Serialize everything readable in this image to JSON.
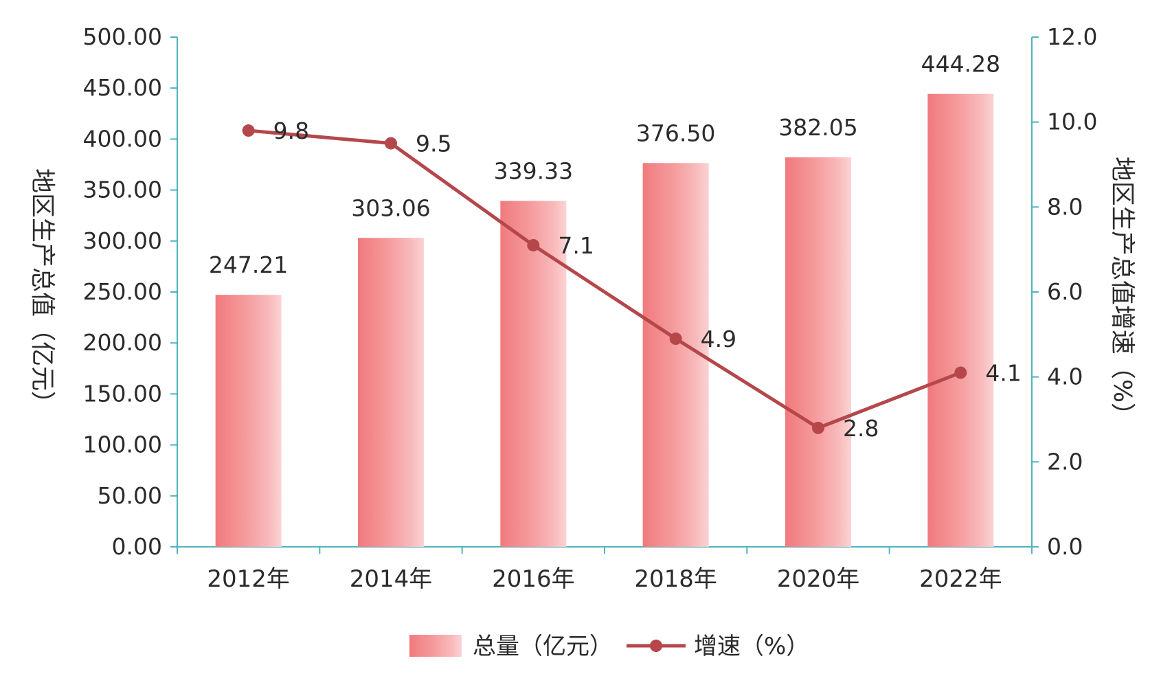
{
  "chart_data": {
    "type": "bar",
    "categories": [
      "2012年",
      "2014年",
      "2016年",
      "2018年",
      "2020年",
      "2022年"
    ],
    "series": [
      {
        "name": "总量（亿元）",
        "type": "bar",
        "axis": "left",
        "values": [
          247.21,
          303.06,
          339.33,
          376.5,
          382.05,
          444.28
        ],
        "labels": [
          "247.21",
          "303.06",
          "339.33",
          "376.50",
          "382.05",
          "444.28"
        ],
        "color": "#f08080"
      },
      {
        "name": "增速（%）",
        "type": "line",
        "axis": "right",
        "values": [
          9.8,
          9.5,
          7.1,
          4.9,
          2.8,
          4.1
        ],
        "labels": [
          "9.8",
          "9.5",
          "7.1",
          "4.9",
          "2.8",
          "4.1"
        ],
        "color": "#b5474b"
      }
    ],
    "y_left": {
      "label": "地区生产总值（亿元）",
      "range": [
        0,
        500
      ],
      "ticks": [
        "0.00",
        "50.00",
        "100.00",
        "150.00",
        "200.00",
        "250.00",
        "300.00",
        "350.00",
        "400.00",
        "450.00",
        "500.00"
      ]
    },
    "y_right": {
      "label": "地区生产总值增速（%）",
      "range": [
        0,
        12
      ],
      "ticks": [
        "0.0",
        "2.0",
        "4.0",
        "6.0",
        "8.0",
        "10.0",
        "12.0"
      ]
    },
    "axis_color": "#4fb3bf",
    "grid": false,
    "legend_position": "bottom"
  }
}
